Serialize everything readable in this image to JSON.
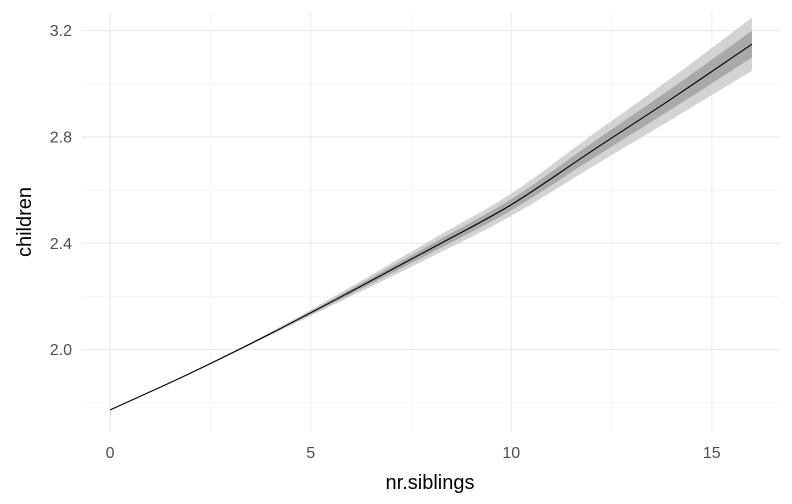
{
  "chart_data": {
    "type": "line",
    "title": "",
    "xlabel": "nr.siblings",
    "ylabel": "children",
    "xlim": [
      -0.7,
      16.7
    ],
    "ylim": [
      1.69,
      3.27
    ],
    "x_ticks": [
      0,
      5,
      10,
      15
    ],
    "x_tick_labels": [
      "0",
      "5",
      "10",
      "15"
    ],
    "y_ticks": [
      2.0,
      2.4,
      2.8,
      3.2
    ],
    "y_tick_labels": [
      "2.0",
      "2.4",
      "2.8",
      "3.2"
    ],
    "grid": true,
    "background": "#ffffff",
    "colors": {
      "line": "#000000",
      "band_outer": "#d3d3d3",
      "band_inner": "#a9a9a9",
      "grid_major": "#ebebeb",
      "grid_minor": "#f5f5f5"
    },
    "series": [
      {
        "x": [
          0,
          2,
          4,
          6,
          8,
          10,
          12,
          14,
          16
        ],
        "y": [
          1.773,
          1.911,
          2.06,
          2.218,
          2.38,
          2.545,
          2.746,
          2.944,
          3.149
        ],
        "inner_lower": [
          1.772,
          1.91,
          2.057,
          2.209,
          2.364,
          2.524,
          2.716,
          2.905,
          3.099
        ],
        "inner_upper": [
          1.774,
          1.913,
          2.063,
          2.227,
          2.396,
          2.566,
          2.776,
          2.983,
          3.199
        ],
        "outer_lower": [
          1.771,
          1.909,
          2.054,
          2.2,
          2.348,
          2.503,
          2.686,
          2.866,
          3.049
        ],
        "outer_upper": [
          1.775,
          1.914,
          2.066,
          2.236,
          2.412,
          2.587,
          2.806,
          3.022,
          3.249
        ]
      }
    ]
  }
}
